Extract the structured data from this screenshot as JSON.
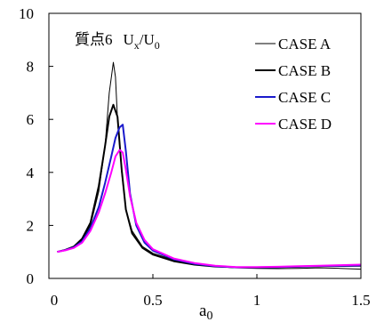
{
  "chart_data": {
    "type": "line",
    "title": "",
    "annotation": {
      "kanji": "質点6",
      "U": "U",
      "x_sub": "x",
      "slash": "/",
      "U0": "U",
      "zero_sub": "0"
    },
    "xlabel": {
      "main": "a",
      "sub": "0"
    },
    "ylabel": "",
    "xlim": [
      0,
      1.5
    ],
    "ylim": [
      0,
      10
    ],
    "x_ticks": [
      {
        "value": 0,
        "label": "0"
      },
      {
        "value": 0.5,
        "label": "0.5"
      },
      {
        "value": 1,
        "label": "1"
      },
      {
        "value": 1.5,
        "label": "1.5"
      }
    ],
    "y_ticks": [
      {
        "value": 0,
        "label": "0"
      },
      {
        "value": 2,
        "label": "2"
      },
      {
        "value": 4,
        "label": "4"
      },
      {
        "value": 6,
        "label": "6"
      },
      {
        "value": 8,
        "label": "8"
      },
      {
        "value": 10,
        "label": "10"
      }
    ],
    "grid": false,
    "legend_position": "top-right",
    "series": [
      {
        "name": "CASE A",
        "color": "#000000",
        "line_weight": "thin",
        "x": [
          0.04,
          0.08,
          0.12,
          0.16,
          0.2,
          0.24,
          0.27,
          0.29,
          0.31,
          0.32,
          0.33,
          0.35,
          0.37,
          0.4,
          0.45,
          0.5,
          0.6,
          0.7,
          0.8,
          0.9,
          1.0,
          1.1,
          1.2,
          1.3,
          1.4,
          1.5
        ],
        "y": [
          1.0,
          1.08,
          1.2,
          1.45,
          2.0,
          3.3,
          5.0,
          7.0,
          8.15,
          7.6,
          6.0,
          4.0,
          2.6,
          1.8,
          1.2,
          0.95,
          0.7,
          0.55,
          0.45,
          0.4,
          0.38,
          0.37,
          0.38,
          0.4,
          0.38,
          0.35
        ]
      },
      {
        "name": "CASE B",
        "color": "#000000",
        "line_weight": "thick",
        "x": [
          0.04,
          0.08,
          0.12,
          0.16,
          0.2,
          0.24,
          0.27,
          0.29,
          0.31,
          0.33,
          0.35,
          0.37,
          0.4,
          0.45,
          0.5,
          0.6,
          0.7,
          0.8,
          0.9,
          1.0,
          1.1,
          1.2,
          1.3,
          1.4,
          1.5
        ],
        "y": [
          1.0,
          1.08,
          1.2,
          1.5,
          2.1,
          3.5,
          5.0,
          6.1,
          6.55,
          6.1,
          4.1,
          2.6,
          1.7,
          1.15,
          0.9,
          0.65,
          0.52,
          0.45,
          0.42,
          0.42,
          0.43,
          0.44,
          0.46,
          0.47,
          0.48
        ]
      },
      {
        "name": "CASE C",
        "color": "#1a1acc",
        "line_weight": "thick",
        "x": [
          0.04,
          0.08,
          0.12,
          0.16,
          0.2,
          0.24,
          0.27,
          0.3,
          0.32,
          0.34,
          0.355,
          0.37,
          0.39,
          0.42,
          0.46,
          0.5,
          0.6,
          0.7,
          0.8,
          0.9,
          1.0,
          1.1,
          1.2,
          1.3,
          1.4,
          1.5
        ],
        "y": [
          1.0,
          1.07,
          1.17,
          1.4,
          1.9,
          2.7,
          3.6,
          4.6,
          5.3,
          5.7,
          5.8,
          4.8,
          3.2,
          2.0,
          1.35,
          1.05,
          0.72,
          0.55,
          0.46,
          0.42,
          0.42,
          0.43,
          0.45,
          0.47,
          0.48,
          0.49
        ]
      },
      {
        "name": "CASE D",
        "color": "#ff00ff",
        "line_weight": "thick",
        "x": [
          0.04,
          0.08,
          0.12,
          0.16,
          0.2,
          0.24,
          0.27,
          0.3,
          0.32,
          0.34,
          0.355,
          0.37,
          0.39,
          0.42,
          0.46,
          0.5,
          0.6,
          0.7,
          0.8,
          0.9,
          1.0,
          1.1,
          1.2,
          1.3,
          1.4,
          1.5
        ],
        "y": [
          1.0,
          1.06,
          1.15,
          1.35,
          1.8,
          2.5,
          3.2,
          4.0,
          4.6,
          4.85,
          4.75,
          4.1,
          3.1,
          2.1,
          1.45,
          1.1,
          0.75,
          0.58,
          0.48,
          0.43,
          0.43,
          0.44,
          0.46,
          0.48,
          0.5,
          0.52
        ]
      }
    ]
  }
}
